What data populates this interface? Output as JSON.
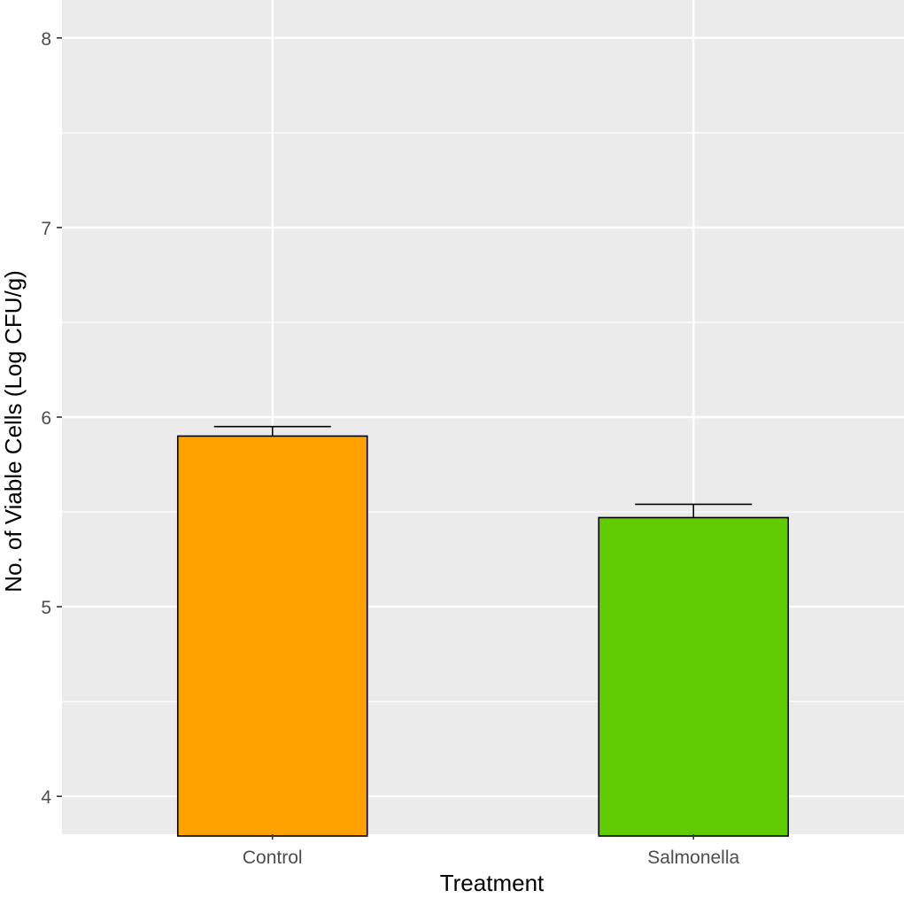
{
  "chart_data": {
    "type": "bar",
    "title": "",
    "xlabel": "Treatment",
    "ylabel": "No. of Viable Cells (Log CFU/g)",
    "categories": [
      "Control",
      "Salmonella"
    ],
    "values": [
      5.9,
      5.47
    ],
    "error_upper": [
      5.95,
      5.54
    ],
    "colors": [
      "#FFA200",
      "#60CC00"
    ],
    "ylim": [
      3.8,
      8.2
    ],
    "yticks": [
      4,
      5,
      6,
      7,
      8
    ],
    "ytick_labels": [
      "4",
      "5",
      "6",
      "7",
      "8"
    ],
    "grid": true,
    "panel_color": "#EBEBEB",
    "grid_color": "#FFFFFF"
  }
}
